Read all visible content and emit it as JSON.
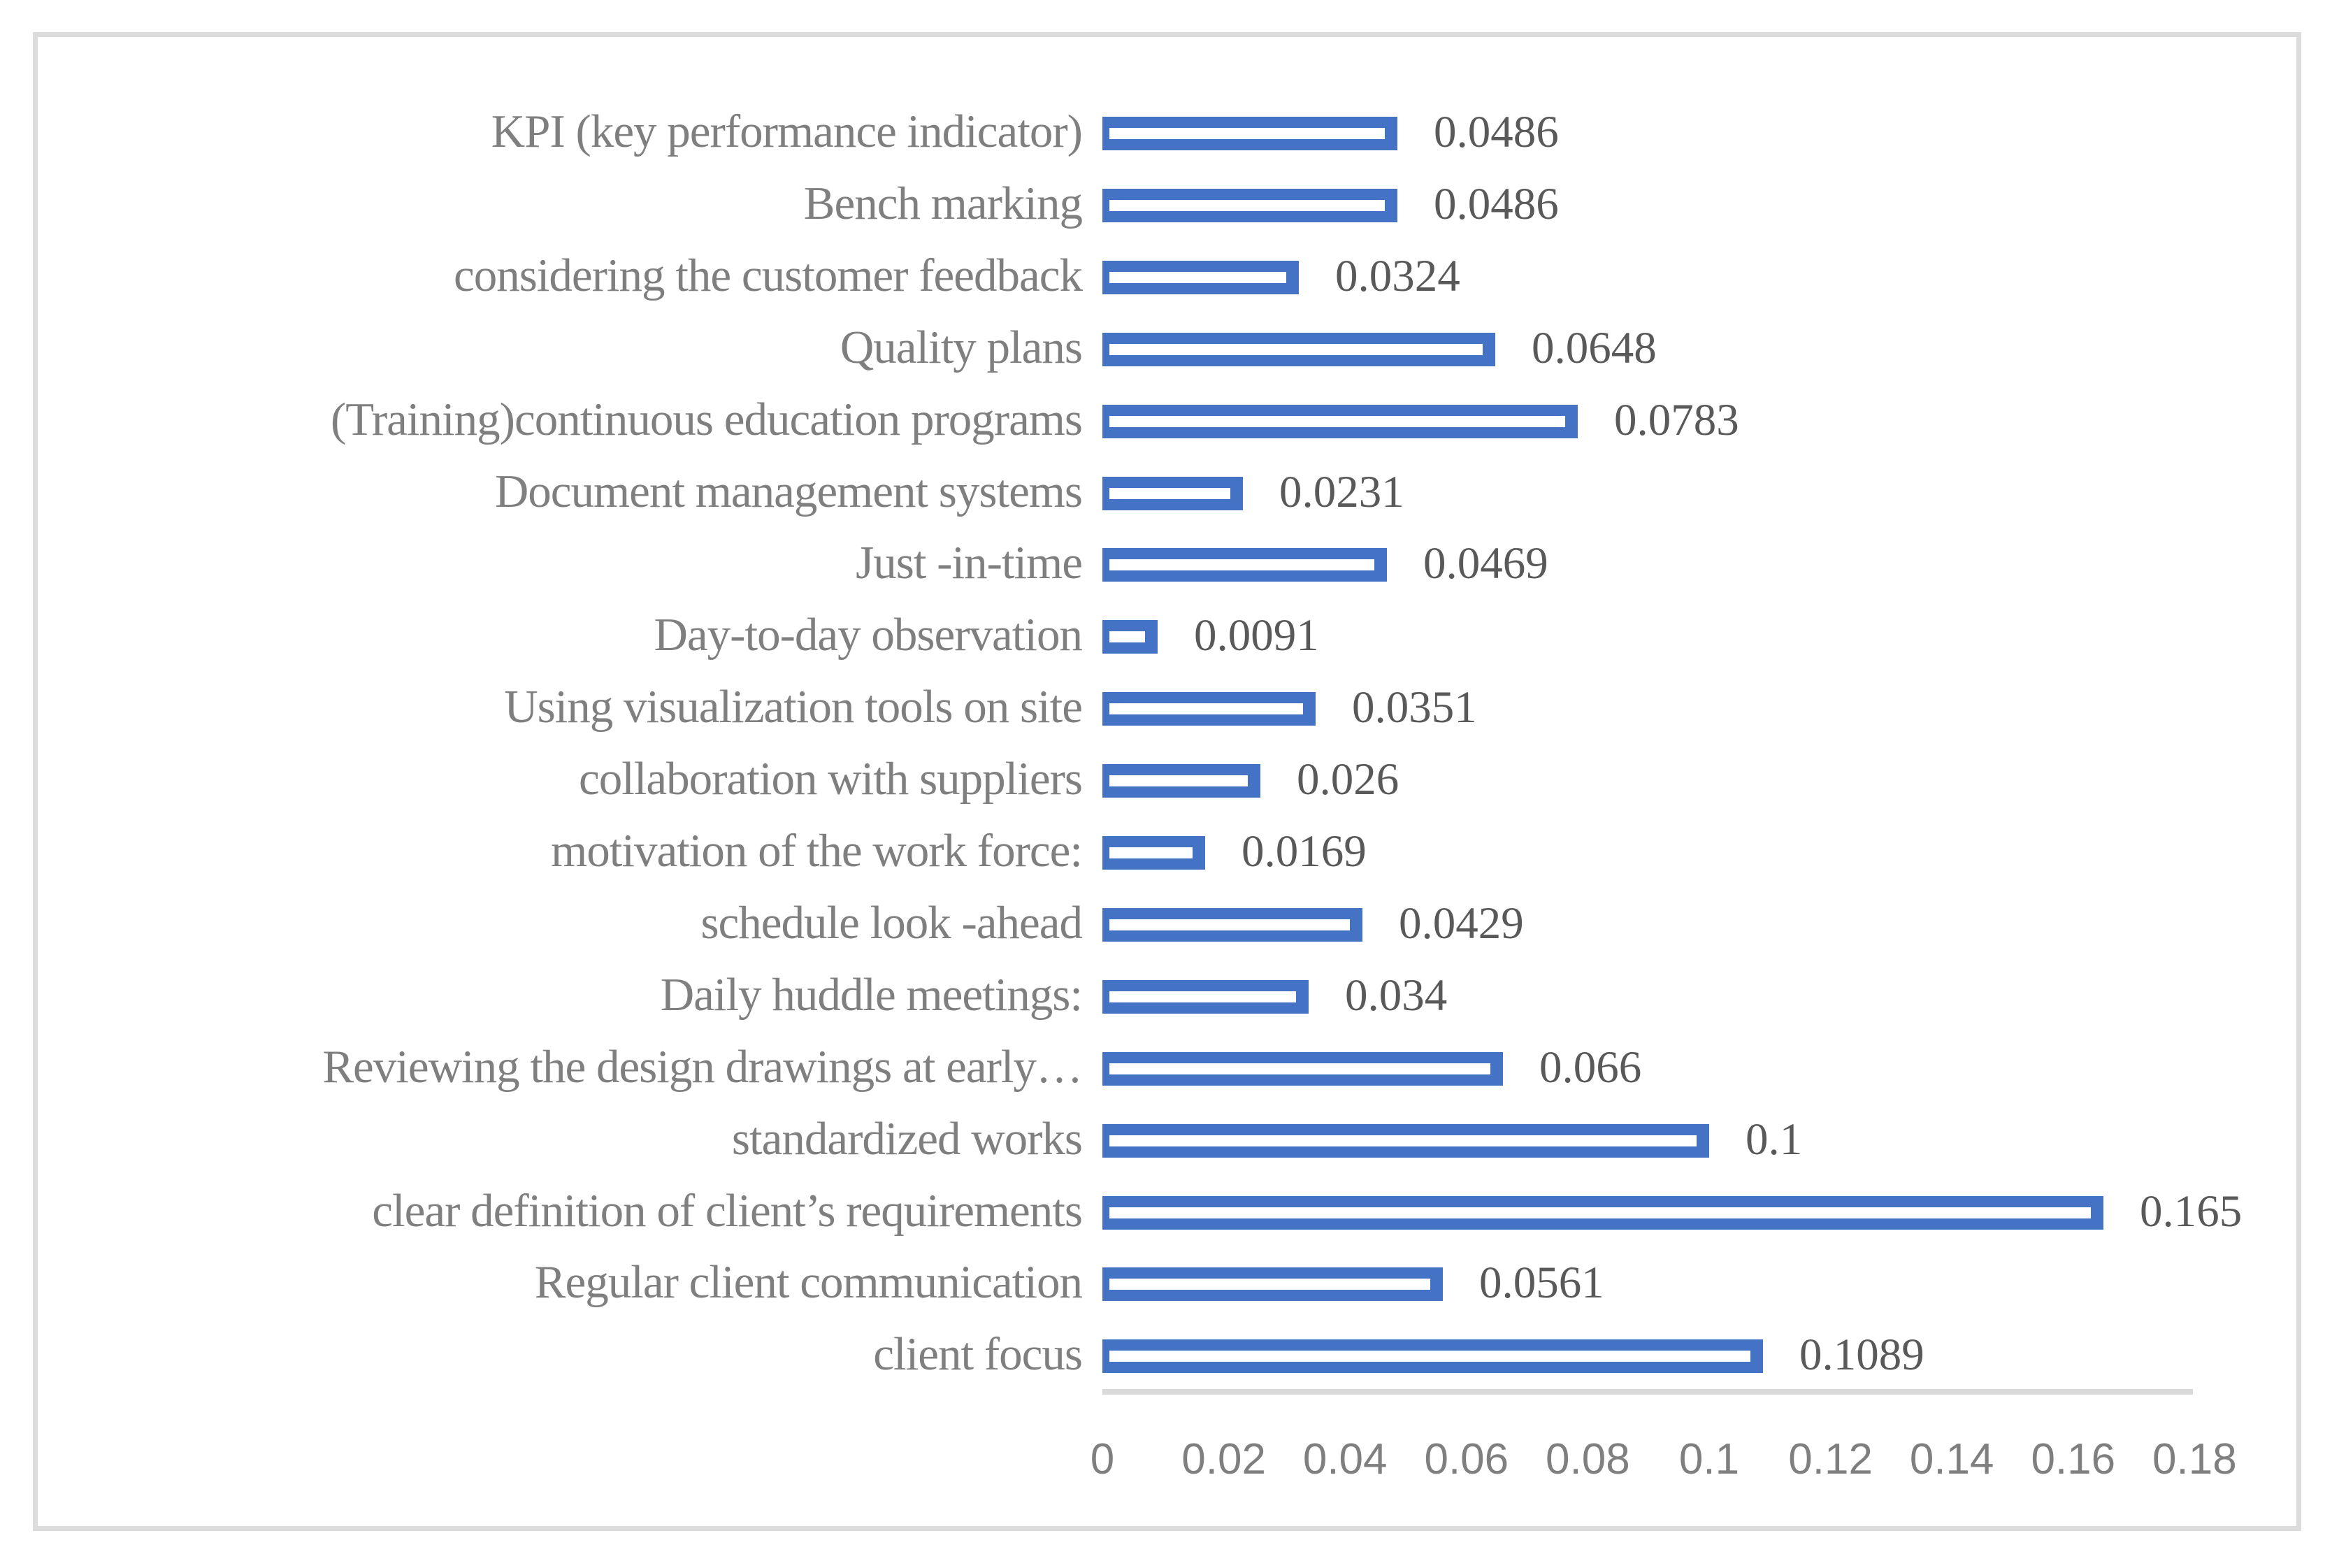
{
  "chart_data": {
    "type": "bar",
    "orientation": "horizontal",
    "title": "",
    "xlabel": "",
    "ylabel": "",
    "categories": [
      "KPI (key performance indicator)",
      "Bench marking",
      "considering the customer feedback",
      "Quality plans",
      "(Training)continuous education programs",
      "Document management systems",
      "Just -in-time",
      "Day-to-day observation",
      "Using visualization tools on site",
      "collaboration with suppliers",
      "motivation of the work force:",
      "schedule look -ahead",
      "Daily huddle meetings:",
      "Reviewing the design drawings at early…",
      "standardized works",
      "clear definition of client’s requirements",
      "Regular client communication",
      "client focus"
    ],
    "values": [
      0.0486,
      0.0486,
      0.0324,
      0.0648,
      0.0783,
      0.0231,
      0.0469,
      0.0091,
      0.0351,
      0.026,
      0.0169,
      0.0429,
      0.034,
      0.066,
      0.1,
      0.165,
      0.0561,
      0.1089
    ],
    "value_labels": [
      "0.0486",
      "0.0486",
      "0.0324",
      "0.0648",
      "0.0783",
      "0.0231",
      "0.0469",
      "0.0091",
      "0.0351",
      "0.026",
      "0.0169",
      "0.0429",
      "0.034",
      "0.066",
      "0.1",
      "0.165",
      "0.0561",
      "0.1089"
    ],
    "x_tick_labels": [
      "0",
      "0.02",
      "0.04",
      "0.06",
      "0.08",
      "0.1",
      "0.12",
      "0.14",
      "0.16",
      "0.18"
    ],
    "x_tick_values": [
      0,
      0.02,
      0.04,
      0.06,
      0.08,
      0.1,
      0.12,
      0.14,
      0.16,
      0.18
    ],
    "xlim": [
      0,
      0.18
    ],
    "grid": false,
    "legend": "none",
    "data_labels_shown": true,
    "colors": {
      "bar_fill": "#4472C4",
      "bar_inner_stripe": "#FFFFFF",
      "category_label_text": "#7F7F7F",
      "value_label_text": "#595959",
      "axis_tick_text": "#7F7F7F",
      "axis_line": "#D9D9D9",
      "figure_border": "#DCDCDC",
      "background": "#FFFFFF"
    }
  }
}
